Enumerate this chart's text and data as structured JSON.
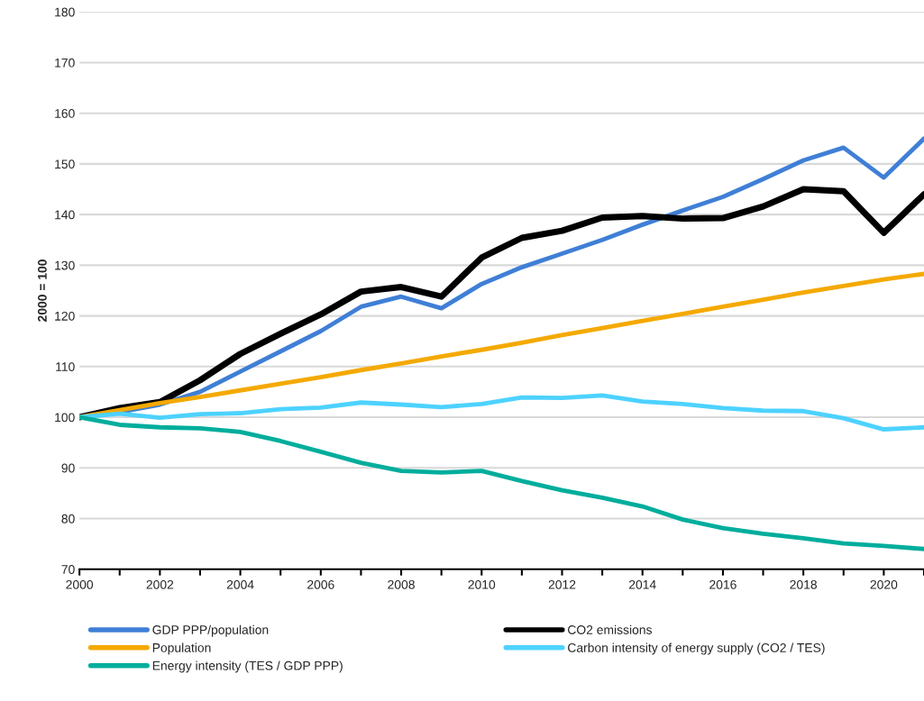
{
  "chart_data": {
    "type": "line",
    "ylabel": "2000 = 100",
    "x": [
      2000,
      2001,
      2002,
      2003,
      2004,
      2005,
      2006,
      2007,
      2008,
      2009,
      2010,
      2011,
      2012,
      2013,
      2014,
      2015,
      2016,
      2017,
      2018,
      2019,
      2020,
      2021
    ],
    "series": [
      {
        "name": "GDP PPP/population",
        "color": "#3f7fd6",
        "values": [
          100,
          101,
          102.5,
          105,
          109,
          113,
          117,
          121.8,
          123.8,
          121.5,
          126.3,
          129.6,
          132.3,
          135,
          138,
          140.8,
          143.5,
          147,
          150.7,
          153.2,
          147.3,
          155
        ]
      },
      {
        "name": "CO2 emissions",
        "color": "#000000",
        "values": [
          100,
          101.8,
          103,
          107.3,
          112.5,
          116.5,
          120.3,
          124.8,
          125.7,
          123.8,
          131.5,
          135.4,
          136.8,
          139.4,
          139.7,
          139.2,
          139.3,
          141.6,
          145,
          144.6,
          136.4,
          144
        ]
      },
      {
        "name": "Population",
        "color": "#f4a900",
        "values": [
          100,
          101.4,
          102.8,
          104,
          105.3,
          106.6,
          107.9,
          109.3,
          110.6,
          112,
          113.3,
          114.7,
          116.2,
          117.6,
          119,
          120.4,
          121.8,
          123.2,
          124.6,
          125.9,
          127.2,
          128.3
        ]
      },
      {
        "name": "Carbon intensity of energy supply (CO2 / TES)",
        "color": "#4dd2ff",
        "values": [
          100,
          100.7,
          99.9,
          100.6,
          100.8,
          101.6,
          101.9,
          102.9,
          102.5,
          102,
          102.6,
          103.9,
          103.8,
          104.3,
          103.1,
          102.6,
          101.8,
          101.3,
          101.2,
          99.8,
          97.6,
          98
        ]
      },
      {
        "name": "Energy intensity (TES / GDP PPP)",
        "color": "#00ad9c",
        "values": [
          100,
          98.5,
          98,
          97.8,
          97.1,
          95.3,
          93.2,
          91,
          89.4,
          89.1,
          89.4,
          87.4,
          85.6,
          84.1,
          82.4,
          79.8,
          78.1,
          77,
          76.1,
          75.1,
          74.6,
          74
        ]
      }
    ],
    "xlim": [
      2000,
      2021
    ],
    "xticks": [
      2000,
      {
        "value": 2001,
        "label": null
      },
      2002,
      {
        "value": 2003,
        "label": null
      },
      2004,
      {
        "value": 2005,
        "label": null
      },
      2006,
      {
        "value": 2007,
        "label": null
      },
      2008,
      {
        "value": 2009,
        "label": null
      },
      2010,
      {
        "value": 2011,
        "label": null
      },
      2012,
      {
        "value": 2013,
        "label": null
      },
      2014,
      {
        "value": 2015,
        "label": null
      },
      2016,
      {
        "value": 2017,
        "label": null
      },
      2018,
      {
        "value": 2019,
        "label": null
      },
      2020,
      {
        "value": 2021,
        "label": null
      }
    ],
    "ylim": [
      70,
      180
    ],
    "yticks": [
      70,
      80,
      90,
      100,
      110,
      120,
      130,
      140,
      150,
      160,
      170,
      180
    ],
    "grid": "y",
    "legend": "bottom",
    "marker": "none",
    "line_style": "solid"
  }
}
